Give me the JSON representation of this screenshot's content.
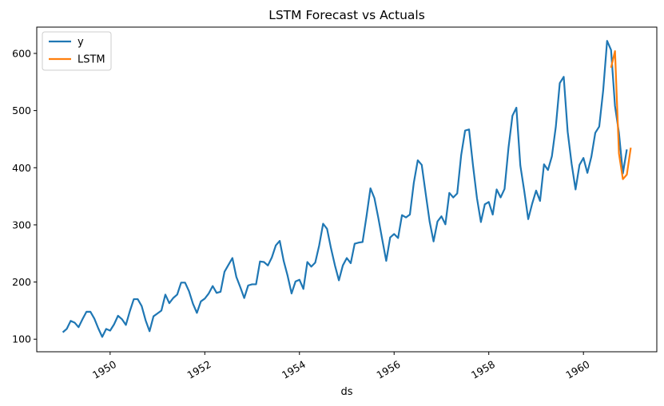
{
  "chart_data": {
    "type": "line",
    "title": "LSTM Forecast vs Actuals",
    "xlabel": "ds",
    "ylabel": "",
    "xlim": [
      1948.45,
      1961.55
    ],
    "ylim": [
      78,
      646
    ],
    "x_ticks": [
      1950,
      1952,
      1954,
      1956,
      1958,
      1960
    ],
    "x_tick_labels": [
      "1950",
      "1952",
      "1954",
      "1956",
      "1958",
      "1960"
    ],
    "y_ticks": [
      100,
      200,
      300,
      400,
      500,
      600
    ],
    "y_tick_labels": [
      "100",
      "200",
      "300",
      "400",
      "500",
      "600"
    ],
    "legend_position": "top-left",
    "series": [
      {
        "name": "y",
        "color": "#1f77b4",
        "x_start": 1949.0,
        "x_step_months": 1,
        "values": [
          112,
          118,
          132,
          129,
          121,
          135,
          148,
          148,
          136,
          119,
          104,
          118,
          115,
          126,
          141,
          135,
          125,
          149,
          170,
          170,
          158,
          133,
          114,
          140,
          145,
          150,
          178,
          163,
          172,
          178,
          199,
          199,
          184,
          162,
          146,
          166,
          171,
          180,
          193,
          181,
          183,
          218,
          230,
          242,
          209,
          191,
          172,
          194,
          196,
          196,
          236,
          235,
          229,
          243,
          264,
          272,
          237,
          211,
          180,
          201,
          204,
          188,
          235,
          227,
          234,
          264,
          302,
          293,
          259,
          229,
          203,
          229,
          242,
          233,
          267,
          269,
          270,
          315,
          364,
          347,
          312,
          274,
          237,
          278,
          284,
          277,
          317,
          313,
          318,
          374,
          413,
          405,
          355,
          306,
          271,
          306,
          315,
          301,
          356,
          348,
          355,
          422,
          465,
          467,
          404,
          347,
          305,
          336,
          340,
          318,
          362,
          348,
          363,
          435,
          491,
          505,
          404,
          359,
          310,
          337,
          360,
          342,
          406,
          396,
          420,
          472,
          548,
          559,
          463,
          407,
          362,
          405,
          417,
          391,
          419,
          461,
          472,
          535,
          622,
          606,
          508,
          461,
          390,
          432
        ]
      },
      {
        "name": "LSTM",
        "color": "#ff7f0e",
        "x": [
          1960.583,
          1960.667,
          1960.75,
          1960.833,
          1960.917,
          1961.0
        ],
        "values": [
          575,
          604,
          425,
          380,
          388,
          435
        ]
      }
    ]
  }
}
